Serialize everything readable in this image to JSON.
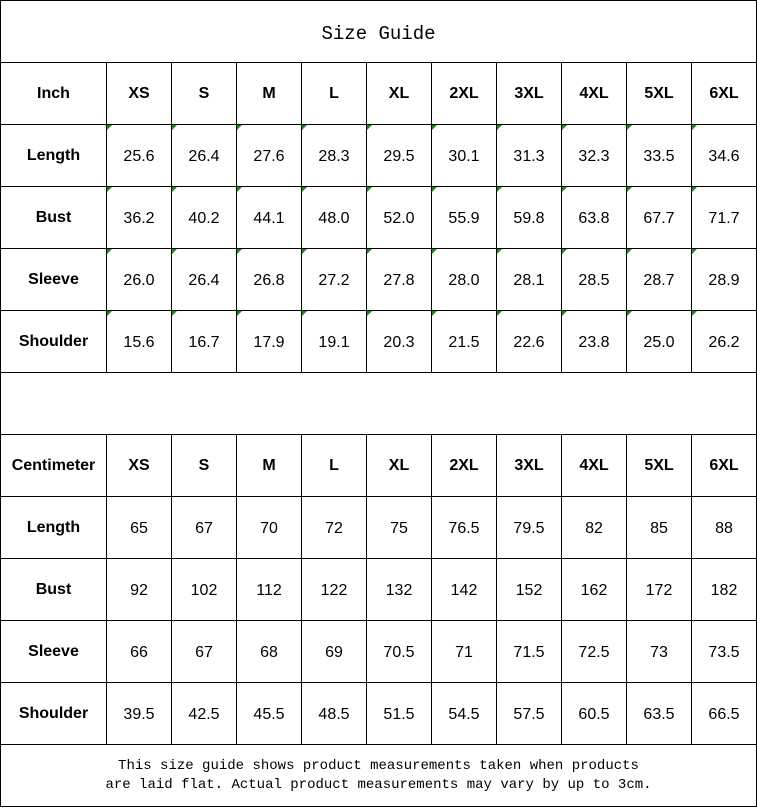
{
  "title": "Size Guide",
  "sizes": [
    "XS",
    "S",
    "M",
    "L",
    "XL",
    "2XL",
    "3XL",
    "4XL",
    "5XL",
    "6XL"
  ],
  "colors": {
    "border": "#000000",
    "corner_marker": "#1a8a1a"
  },
  "inch_table": {
    "unit": "Inch",
    "rows": [
      {
        "label": "Length",
        "values": [
          "25.6",
          "26.4",
          "27.6",
          "28.3",
          "29.5",
          "30.1",
          "31.3",
          "32.3",
          "33.5",
          "34.6"
        ]
      },
      {
        "label": "Bust",
        "values": [
          "36.2",
          "40.2",
          "44.1",
          "48.0",
          "52.0",
          "55.9",
          "59.8",
          "63.8",
          "67.7",
          "71.7"
        ]
      },
      {
        "label": "Sleeve",
        "values": [
          "26.0",
          "26.4",
          "26.8",
          "27.2",
          "27.8",
          "28.0",
          "28.1",
          "28.5",
          "28.7",
          "28.9"
        ]
      },
      {
        "label": "Shoulder",
        "values": [
          "15.6",
          "16.7",
          "17.9",
          "19.1",
          "20.3",
          "21.5",
          "22.6",
          "23.8",
          "25.0",
          "26.2"
        ]
      }
    ]
  },
  "cm_table": {
    "unit": "Centimeter",
    "rows": [
      {
        "label": "Length",
        "values": [
          "65",
          "67",
          "70",
          "72",
          "75",
          "76.5",
          "79.5",
          "82",
          "85",
          "88"
        ]
      },
      {
        "label": "Bust",
        "values": [
          "92",
          "102",
          "112",
          "122",
          "132",
          "142",
          "152",
          "162",
          "172",
          "182"
        ]
      },
      {
        "label": "Sleeve",
        "values": [
          "66",
          "67",
          "68",
          "69",
          "70.5",
          "71",
          "71.5",
          "72.5",
          "73",
          "73.5"
        ]
      },
      {
        "label": "Shoulder",
        "values": [
          "39.5",
          "42.5",
          "45.5",
          "48.5",
          "51.5",
          "54.5",
          "57.5",
          "60.5",
          "63.5",
          "66.5"
        ]
      }
    ]
  },
  "note": {
    "line1": "This size guide shows product measurements taken when products",
    "line2": "are laid flat. Actual product measurements may vary by up to 3cm."
  }
}
